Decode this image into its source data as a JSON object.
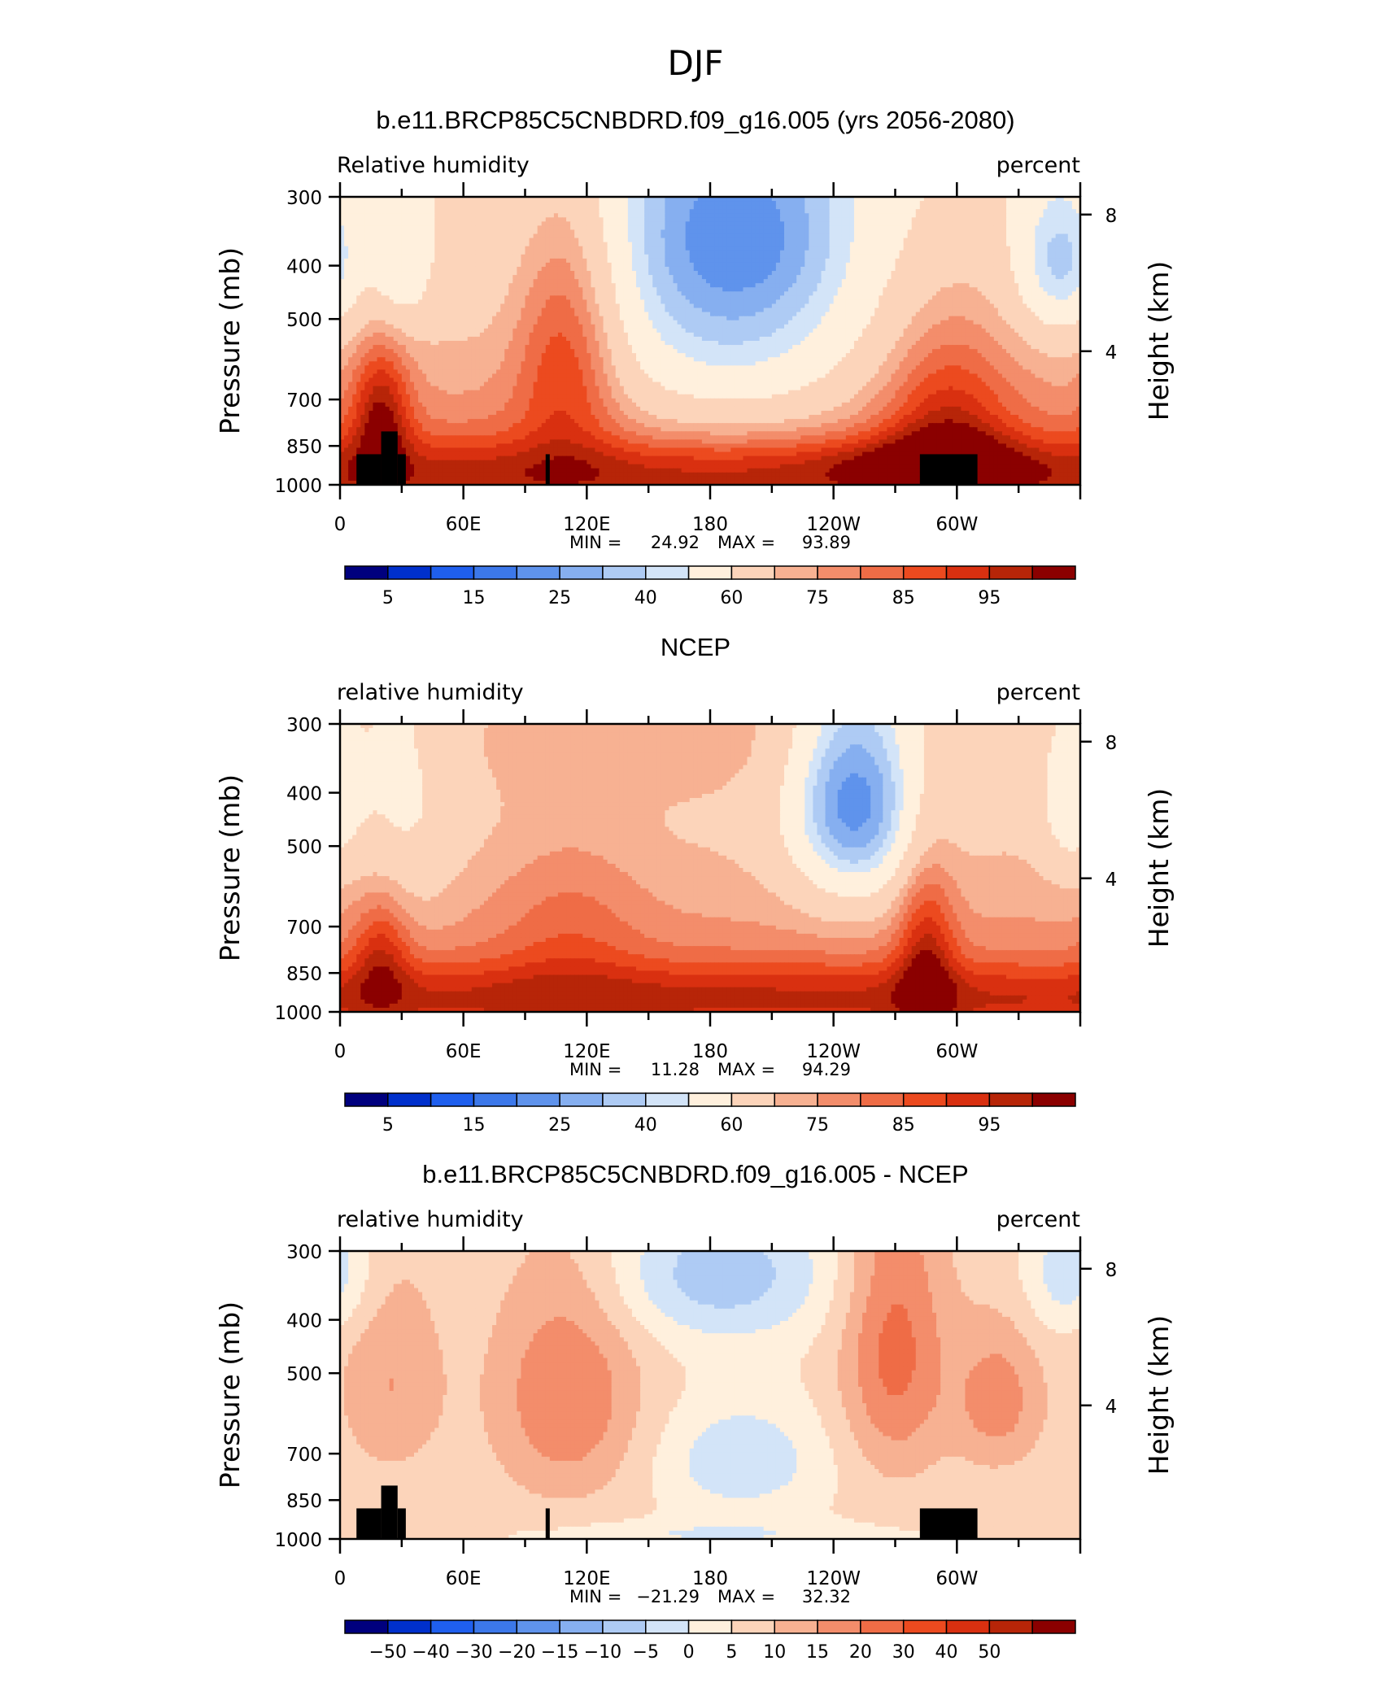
{
  "figure": {
    "title": "DJF"
  },
  "palettes": {
    "abs": [
      "#00007e",
      "#0030cc",
      "#1f5fee",
      "#3c78ea",
      "#5f93ec",
      "#86aff0",
      "#aecbf4",
      "#d3e4f8",
      "#fff0dd",
      "#fcd4ba",
      "#f7b192",
      "#f38d6b",
      "#ef6c46",
      "#ec4a1f",
      "#d93010",
      "#b72508",
      "#8b0000"
    ],
    "diff": [
      "#00007e",
      "#0030cc",
      "#1f5fee",
      "#3c78ea",
      "#5f93ec",
      "#86aff0",
      "#aecbf4",
      "#d3e4f8",
      "#fff0dd",
      "#fcd4ba",
      "#f7b192",
      "#f38d6b",
      "#ef6c46",
      "#ec4a1f",
      "#d93010",
      "#b72508",
      "#8b0000"
    ]
  },
  "chart_data": [
    {
      "type": "heatmap",
      "title": "b.e11.BRCP85C5CNBDRD.f09_g16.005 (yrs 2056-2080)",
      "variable_label": "Relative  humidity",
      "units_label": "percent",
      "ylabel": "Pressure  (mb)",
      "y2label": "Height  (km)",
      "y_ticks": [
        "300",
        "400",
        "500",
        "700",
        "850",
        "1000"
      ],
      "y2_ticks": [
        "8",
        "4"
      ],
      "x_ticks": [
        "0",
        "60E",
        "120E",
        "180",
        "120W",
        "60W"
      ],
      "min_label": "MIN =",
      "min_value": "24.92",
      "max_label": "MAX =",
      "max_value": "93.89",
      "colorbar_labels": [
        "5",
        "15",
        "25",
        "40",
        "60",
        "75",
        "85",
        "95"
      ],
      "levels": [
        0,
        5,
        10,
        15,
        20,
        25,
        30,
        35,
        40,
        50,
        60,
        65,
        70,
        75,
        80,
        85,
        90,
        95
      ],
      "palette": "abs",
      "masked": true,
      "field": {
        "base": 58,
        "gradients": [
          {
            "p": 300,
            "v": -6
          },
          {
            "p": 1000,
            "v": 18
          }
        ],
        "features": [
          {
            "lon": 20,
            "p": 750,
            "slon": 10,
            "sp": 150,
            "amp": 25
          },
          {
            "lon": 30,
            "p": 400,
            "slon": 10,
            "sp": 80,
            "amp": -15
          },
          {
            "lon": 110,
            "p": 550,
            "slon": 18,
            "sp": 230,
            "amp": 22
          },
          {
            "lon": 190,
            "p": 450,
            "slon": 50,
            "sp": 240,
            "amp": -28
          },
          {
            "lon": 195,
            "p": 350,
            "slon": 30,
            "sp": 80,
            "amp": -8
          },
          {
            "lon": 295,
            "p": 800,
            "slon": 22,
            "sp": 240,
            "amp": 20
          },
          {
            "lon": 350,
            "p": 400,
            "slon": 15,
            "sp": 90,
            "amp": -22
          },
          {
            "lon": 180,
            "p": 940,
            "slon": 360,
            "sp": 90,
            "amp": 14
          },
          {
            "lon": 285,
            "p": 920,
            "slon": 35,
            "sp": 80,
            "amp": 10
          }
        ]
      }
    },
    {
      "type": "heatmap",
      "title": "NCEP",
      "variable_label": "relative  humidity",
      "units_label": "percent",
      "ylabel": "Pressure  (mb)",
      "y2label": "Height  (km)",
      "y_ticks": [
        "300",
        "400",
        "500",
        "700",
        "850",
        "1000"
      ],
      "y2_ticks": [
        "8",
        "4"
      ],
      "x_ticks": [
        "0",
        "60E",
        "120E",
        "180",
        "120W",
        "60W"
      ],
      "min_label": "MIN =",
      "min_value": "11.28",
      "max_label": "MAX =",
      "max_value": "94.29",
      "colorbar_labels": [
        "5",
        "15",
        "25",
        "40",
        "60",
        "75",
        "85",
        "95"
      ],
      "levels": [
        0,
        5,
        10,
        15,
        20,
        25,
        30,
        35,
        40,
        50,
        60,
        65,
        70,
        75,
        80,
        85,
        90,
        95
      ],
      "palette": "abs",
      "masked": false,
      "field": {
        "base": 50,
        "gradients": [
          {
            "p": 300,
            "v": 4
          },
          {
            "p": 1000,
            "v": 24
          }
        ],
        "features": [
          {
            "lon": 250,
            "p": 420,
            "slon": 22,
            "sp": 140,
            "amp": -36
          },
          {
            "lon": 30,
            "p": 420,
            "slon": 18,
            "sp": 180,
            "amp": -10
          },
          {
            "lon": 20,
            "p": 780,
            "slon": 10,
            "sp": 140,
            "amp": 16
          },
          {
            "lon": 112,
            "p": 700,
            "slon": 25,
            "sp": 200,
            "amp": 8
          },
          {
            "lon": 285,
            "p": 800,
            "slon": 10,
            "sp": 220,
            "amp": 20
          },
          {
            "lon": 355,
            "p": 420,
            "slon": 10,
            "sp": 90,
            "amp": -14
          },
          {
            "lon": 180,
            "p": 930,
            "slon": 360,
            "sp": 90,
            "amp": 14
          },
          {
            "lon": 150,
            "p": 300,
            "slon": 80,
            "sp": 70,
            "amp": 10
          }
        ]
      }
    },
    {
      "type": "heatmap",
      "title": "b.e11.BRCP85C5CNBDRD.f09_g16.005 - NCEP",
      "variable_label": "relative  humidity",
      "units_label": "percent",
      "ylabel": "Pressure  (mb)",
      "y2label": "Height  (km)",
      "y_ticks": [
        "300",
        "400",
        "500",
        "700",
        "850",
        "1000"
      ],
      "y2_ticks": [
        "8",
        "4"
      ],
      "x_ticks": [
        "0",
        "60E",
        "120E",
        "180",
        "120W",
        "60W"
      ],
      "min_label": "MIN =",
      "min_value": "−21.29",
      "max_label": "MAX =",
      "max_value": "32.32",
      "colorbar_labels": [
        "−50",
        "−40",
        "−30",
        "−20",
        "−15",
        "−10",
        "−5",
        "0",
        "5",
        "10",
        "15",
        "20",
        "30",
        "40",
        "50"
      ],
      "levels": [
        -60,
        -50,
        -40,
        -30,
        -20,
        -15,
        -10,
        -5,
        0,
        5,
        10,
        15,
        20,
        30,
        40,
        50,
        60
      ],
      "palette": "diff",
      "masked": true,
      "field": {
        "base": 6,
        "gradients": [],
        "features": [
          {
            "lon": 110,
            "p": 550,
            "slon": 25,
            "sp": 190,
            "amp": 14
          },
          {
            "lon": 25,
            "p": 520,
            "slon": 18,
            "sp": 160,
            "amp": 9
          },
          {
            "lon": 270,
            "p": 450,
            "slon": 18,
            "sp": 200,
            "amp": 16
          },
          {
            "lon": 320,
            "p": 560,
            "slon": 15,
            "sp": 120,
            "amp": 12
          },
          {
            "lon": 185,
            "p": 330,
            "slon": 38,
            "sp": 70,
            "amp": -14
          },
          {
            "lon": 195,
            "p": 720,
            "slon": 28,
            "sp": 120,
            "amp": -10
          },
          {
            "lon": 355,
            "p": 330,
            "slon": 15,
            "sp": 60,
            "amp": -10
          },
          {
            "lon": 180,
            "p": 980,
            "slon": 60,
            "sp": 40,
            "amp": -6
          }
        ]
      }
    }
  ]
}
